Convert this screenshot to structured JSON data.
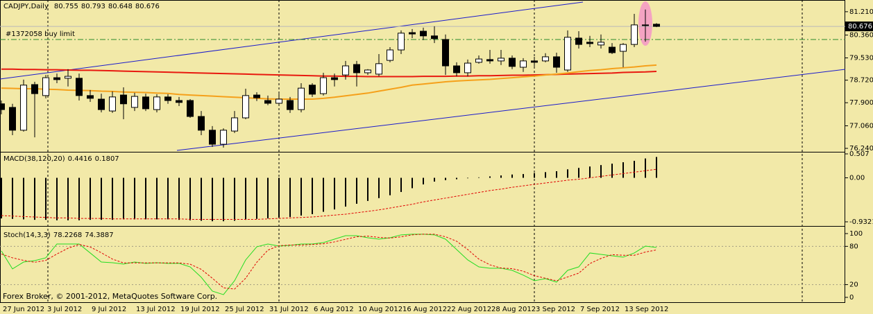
{
  "chart_data": [
    {
      "type": "candlestick",
      "title": "CADJPY,Daily",
      "background": "#f2e9a8",
      "categories": [
        "27 Jun 2012",
        null,
        null,
        null,
        "3 Jul 2012",
        null,
        null,
        null,
        "9 Jul 2012",
        null,
        null,
        null,
        "13 Jul 2012",
        null,
        null,
        null,
        "19 Jul 2012",
        null,
        null,
        null,
        "25 Jul 2012",
        null,
        null,
        null,
        "31 Jul 2012",
        null,
        null,
        null,
        "6 Aug 2012",
        null,
        null,
        null,
        "10 Aug 2012",
        null,
        null,
        null,
        "16 Aug 2012",
        null,
        null,
        null,
        "22 Aug 2012",
        null,
        null,
        null,
        "28 Aug 2012",
        null,
        null,
        null,
        "3 Sep 2012",
        null,
        null,
        null,
        "7 Sep 2012",
        null,
        null,
        null,
        "13 Sep 2012",
        null,
        null,
        null
      ],
      "open": [
        77.86,
        77.73,
        76.9,
        78.56,
        78.16,
        78.81,
        78.79,
        78.79,
        78.16,
        78.03,
        77.6,
        78.18,
        77.73,
        78.11,
        77.65,
        78.11,
        77.98,
        77.98,
        77.4,
        76.9,
        76.39,
        76.87,
        77.35,
        78.18,
        77.98,
        77.88,
        77.98,
        77.65,
        78.54,
        78.23,
        78.81,
        78.91,
        79.29,
        78.99,
        78.94,
        79.44,
        79.82,
        80.45,
        80.5,
        80.33,
        80.2,
        79.24,
        78.99,
        79.37,
        79.47,
        79.42,
        79.52,
        79.19,
        79.42,
        79.42,
        79.57,
        79.09,
        80.25,
        80.1,
        80.0,
        79.92,
        79.77,
        80.02,
        80.73,
        80.755
      ],
      "high": [
        77.98,
        77.86,
        78.74,
        78.66,
        78.91,
        78.96,
        79.12,
        78.96,
        78.36,
        78.23,
        78.31,
        78.46,
        78.26,
        78.23,
        78.21,
        78.21,
        78.11,
        78.03,
        77.6,
        77.05,
        76.97,
        77.6,
        78.41,
        78.28,
        78.16,
        78.23,
        78.11,
        78.61,
        78.61,
        78.99,
        78.96,
        79.42,
        79.42,
        79.12,
        79.67,
        79.92,
        80.53,
        80.58,
        80.63,
        80.68,
        80.38,
        79.37,
        79.47,
        79.62,
        79.82,
        79.82,
        79.62,
        79.52,
        79.57,
        79.7,
        79.72,
        80.53,
        80.5,
        80.33,
        80.38,
        80.07,
        80.07,
        81.13,
        81.29,
        80.793
      ],
      "low": [
        77.48,
        76.72,
        76.85,
        76.64,
        78.06,
        78.61,
        78.49,
        77.98,
        77.93,
        77.55,
        77.53,
        77.3,
        77.6,
        77.6,
        77.55,
        77.86,
        77.78,
        77.35,
        76.72,
        76.29,
        76.27,
        76.8,
        77.3,
        77.96,
        77.81,
        77.78,
        77.53,
        77.55,
        78.11,
        78.16,
        78.49,
        78.74,
        78.49,
        78.91,
        78.86,
        79.37,
        79.67,
        80.25,
        80.18,
        80.07,
        78.91,
        78.86,
        78.86,
        79.32,
        79.32,
        79.27,
        79.12,
        79.02,
        79.22,
        79.37,
        78.99,
        79.02,
        79.87,
        79.92,
        79.87,
        79.67,
        79.19,
        79.92,
        80.12,
        80.648
      ],
      "close": [
        77.65,
        76.9,
        78.54,
        78.23,
        78.81,
        78.74,
        78.86,
        78.16,
        78.06,
        77.65,
        78.11,
        77.86,
        78.13,
        77.68,
        78.11,
        77.98,
        77.91,
        77.4,
        76.9,
        76.39,
        76.9,
        77.35,
        78.16,
        78.08,
        77.88,
        78.03,
        77.65,
        78.43,
        78.21,
        78.81,
        78.74,
        79.24,
        78.99,
        79.09,
        79.32,
        79.82,
        80.43,
        80.4,
        80.33,
        80.23,
        79.24,
        78.99,
        79.34,
        79.49,
        79.42,
        79.52,
        79.22,
        79.42,
        79.37,
        79.57,
        79.19,
        80.28,
        80.02,
        80.05,
        80.1,
        79.72,
        80.02,
        80.73,
        80.71,
        80.676
      ],
      "up_color": "#ffffff",
      "down_color": "#000000",
      "series": [
        {
          "type": "line",
          "color": "#e8190f",
          "width": 2,
          "values": [
            79.12,
            79.12,
            79.11,
            79.11,
            79.1,
            79.1,
            79.09,
            79.08,
            79.08,
            79.07,
            79.06,
            79.05,
            79.04,
            79.03,
            79.02,
            79.01,
            79.0,
            78.99,
            78.98,
            78.97,
            78.96,
            78.95,
            78.94,
            78.93,
            78.92,
            78.91,
            78.9,
            78.89,
            78.88,
            78.87,
            78.87,
            78.86,
            78.86,
            78.85,
            78.85,
            78.85,
            78.85,
            78.85,
            78.86,
            78.86,
            78.86,
            78.87,
            78.87,
            78.88,
            78.88,
            78.89,
            78.9,
            78.9,
            78.91,
            78.92,
            78.93,
            78.94,
            78.95,
            78.96,
            78.97,
            78.98,
            79.0,
            79.01,
            79.02,
            79.04
          ]
        },
        {
          "type": "line",
          "color": "#f5a01a",
          "width": 2,
          "values": [
            78.43,
            78.42,
            78.41,
            78.41,
            78.39,
            78.38,
            78.36,
            78.35,
            78.34,
            78.32,
            78.31,
            78.29,
            78.28,
            78.27,
            78.25,
            78.24,
            78.2,
            78.18,
            78.16,
            78.14,
            78.12,
            78.1,
            78.08,
            78.06,
            78.04,
            78.03,
            78.03,
            78.03,
            78.03,
            78.06,
            78.1,
            78.15,
            78.2,
            78.25,
            78.32,
            78.39,
            78.46,
            78.54,
            78.58,
            78.62,
            78.66,
            78.69,
            78.71,
            78.73,
            78.75,
            78.78,
            78.81,
            78.84,
            78.87,
            78.91,
            78.94,
            78.98,
            79.03,
            79.07,
            79.1,
            79.14,
            79.17,
            79.2,
            79.24,
            79.27
          ]
        }
      ],
      "ylim": [
        76.14,
        81.56
      ],
      "yticks": [
        {
          "value": 81.21,
          "label": "81.210"
        },
        {
          "value": 80.36,
          "label": "80.360"
        },
        {
          "value": 79.53,
          "label": "79.530"
        },
        {
          "value": 78.72,
          "label": "78.720"
        },
        {
          "value": 77.9,
          "label": "77.900"
        },
        {
          "value": 77.06,
          "label": "77.060"
        },
        {
          "value": 76.24,
          "label": "76.240"
        }
      ],
      "order": {
        "label": "#1372058 buy limit",
        "price": 80.2,
        "color": "#2a8a2a"
      },
      "footer": "Forex Broker, © 2001-2012, MetaQuotes Software Corp."
    },
    {
      "type": "macd",
      "title": "MACD(38,120,20)",
      "series": [
        {
          "type": "bar",
          "color": "#000000",
          "width": 2,
          "values": [
            -0.86,
            -0.87,
            -0.88,
            -0.89,
            -0.89,
            -0.9,
            -0.9,
            -0.9,
            -0.89,
            -0.89,
            -0.89,
            -0.88,
            -0.88,
            -0.88,
            -0.88,
            -0.88,
            -0.89,
            -0.9,
            -0.91,
            -0.92,
            -0.92,
            -0.91,
            -0.89,
            -0.87,
            -0.86,
            -0.84,
            -0.83,
            -0.8,
            -0.77,
            -0.72,
            -0.67,
            -0.61,
            -0.55,
            -0.49,
            -0.43,
            -0.37,
            -0.3,
            -0.22,
            -0.14,
            -0.08,
            -0.05,
            -0.03,
            -0.01,
            0.01,
            0.03,
            0.05,
            0.07,
            0.08,
            0.1,
            0.12,
            0.14,
            0.18,
            0.21,
            0.24,
            0.27,
            0.3,
            0.33,
            0.36,
            0.41,
            0.4416
          ]
        },
        {
          "type": "line",
          "dashed": true,
          "color": "#e00000",
          "width": 1,
          "values": [
            -0.8,
            -0.81,
            -0.82,
            -0.83,
            -0.84,
            -0.85,
            -0.85,
            -0.86,
            -0.86,
            -0.86,
            -0.87,
            -0.87,
            -0.87,
            -0.87,
            -0.87,
            -0.87,
            -0.87,
            -0.88,
            -0.88,
            -0.88,
            -0.88,
            -0.88,
            -0.88,
            -0.88,
            -0.87,
            -0.86,
            -0.85,
            -0.84,
            -0.83,
            -0.81,
            -0.79,
            -0.77,
            -0.74,
            -0.71,
            -0.68,
            -0.64,
            -0.6,
            -0.56,
            -0.51,
            -0.47,
            -0.43,
            -0.39,
            -0.35,
            -0.31,
            -0.27,
            -0.24,
            -0.2,
            -0.17,
            -0.14,
            -0.11,
            -0.08,
            -0.05,
            -0.03,
            0.0,
            0.03,
            0.06,
            0.09,
            0.12,
            0.15,
            0.1807
          ]
        }
      ],
      "ylim": [
        -0.9321,
        0.507
      ],
      "yticks": [
        0.507,
        {
          "value": 0,
          "label": "0.00"
        },
        -0.9321
      ]
    },
    {
      "type": "stochastic",
      "title": "Stoch(14,3,3)",
      "series": [
        {
          "type": "line",
          "color": "#22dd22",
          "width": 1,
          "values": [
            72.8,
            44.6,
            55.4,
            57.6,
            62.0,
            83.7,
            83.7,
            83.7,
            69.6,
            55.4,
            54.3,
            52.2,
            55.4,
            53.3,
            54.3,
            53.3,
            53.3,
            47.8,
            31.5,
            9.8,
            4.3,
            26.1,
            58.7,
            79.3,
            83.7,
            80.4,
            81.5,
            83.7,
            83.7,
            85.9,
            91.3,
            96.7,
            96.7,
            93.5,
            91.3,
            93.5,
            98,
            99,
            99,
            98,
            91.3,
            75.0,
            58.7,
            47.8,
            45.7,
            45.7,
            42.4,
            34.8,
            26.1,
            29.3,
            23.9,
            42.4,
            47.8,
            69.6,
            67.4,
            65.2,
            63.0,
            69.6,
            80.4,
            78.2268
          ]
        },
        {
          "type": "line",
          "dashed": true,
          "color": "#e00000",
          "width": 1,
          "values": [
            68,
            62,
            58,
            55,
            58,
            68,
            77,
            83,
            79,
            70,
            60,
            54,
            54,
            54,
            54,
            54,
            54,
            52,
            44,
            30,
            15,
            13,
            30,
            55,
            74,
            81,
            82,
            82,
            83,
            84,
            87,
            91,
            95,
            96,
            94,
            93,
            95,
            98,
            99,
            99,
            95,
            88,
            75,
            60,
            51,
            46,
            45,
            41,
            34,
            30,
            26,
            32,
            38,
            53,
            61,
            67,
            66,
            66,
            71,
            74.3887
          ]
        }
      ],
      "ylim": [
        -8.7,
        106.5
      ],
      "yticks": [
        100,
        80,
        20,
        0
      ],
      "levels": [
        80,
        20
      ]
    }
  ]
}
